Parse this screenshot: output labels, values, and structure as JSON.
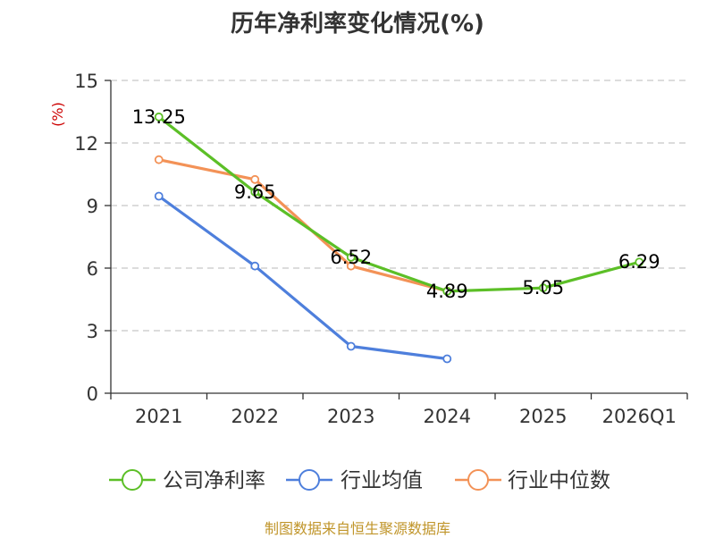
{
  "chart_data": {
    "type": "line",
    "title": "历年净利率变化情况(%)",
    "ylabel": "(%)",
    "xlabel": "",
    "categories": [
      "2021",
      "2022",
      "2023",
      "2024",
      "2025",
      "2026Q1"
    ],
    "y_ticks": [
      0,
      3,
      6,
      9,
      12,
      15
    ],
    "ylim": [
      0,
      15
    ],
    "grid": true,
    "legend_position": "bottom",
    "series": [
      {
        "name": "公司净利率",
        "color": "#5cbf27",
        "values": [
          13.25,
          9.65,
          6.52,
          4.89,
          5.05,
          6.29
        ],
        "labels": [
          "13.25",
          "9.65",
          "6.52",
          "4.89",
          "5.05",
          "6.29"
        ]
      },
      {
        "name": "行业均值",
        "color": "#4e7fdc",
        "values": [
          9.45,
          6.1,
          2.25,
          1.65,
          null,
          null
        ]
      },
      {
        "name": "行业中位数",
        "color": "#f39257",
        "values": [
          11.2,
          10.25,
          6.1,
          4.9,
          null,
          null
        ]
      }
    ]
  },
  "source_note": "制图数据来自恒生聚源数据库"
}
